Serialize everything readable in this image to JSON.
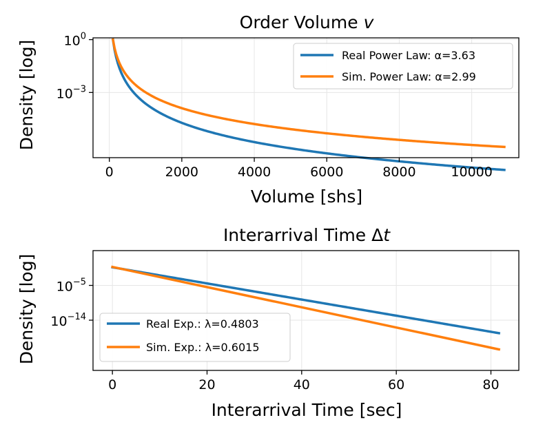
{
  "chart_data": [
    {
      "type": "line",
      "title_main": "Order Volume ",
      "title_var": "v",
      "xlabel": "Volume [shs]",
      "ylabel": "Density [log]",
      "yscale": "log",
      "grid": true,
      "legend_position": "upper right",
      "xlim": [
        -450,
        11300
      ],
      "ylim_log10": [
        -6.7,
        0.1
      ],
      "xticks": [
        0,
        2000,
        4000,
        6000,
        8000,
        10000
      ],
      "xtick_labels": [
        "0",
        "2000",
        "4000",
        "6000",
        "8000",
        "10000"
      ],
      "ytick_exponents": [
        0,
        -3
      ],
      "ytick_labels": [
        {
          "base": "10",
          "exp": "0"
        },
        {
          "base": "10",
          "exp": "−3"
        }
      ],
      "x_range": [
        100,
        10900
      ],
      "series": [
        {
          "name": "Real Power Law: α=3.63",
          "alpha": 3.63,
          "color": "#1f77b4",
          "points": [
            [
              100,
              0
            ],
            [
              300,
              -1.74
            ],
            [
              1000,
              -3.63
            ],
            [
              2000,
              -4.72
            ],
            [
              4000,
              -5.81
            ],
            [
              6000,
              -6.45
            ],
            [
              8000,
              -6.91
            ],
            [
              10900,
              -7.4
            ]
          ]
        },
        {
          "name": "Sim. Power Law: α=2.99",
          "alpha": 2.99,
          "color": "#ff7f0e",
          "points": [
            [
              100,
              0
            ],
            [
              300,
              -1.43
            ],
            [
              1000,
              -2.99
            ],
            [
              2000,
              -3.89
            ],
            [
              4000,
              -4.79
            ],
            [
              6000,
              -5.32
            ],
            [
              8000,
              -5.69
            ],
            [
              10900,
              -6.09
            ]
          ]
        }
      ]
    },
    {
      "type": "line",
      "title_main": "Interarrival Time Δ",
      "title_var": "t",
      "xlabel": "Interarrival Time [sec]",
      "ylabel": "Density [log]",
      "yscale": "log",
      "grid": true,
      "legend_position": "lower left",
      "xlim": [
        -4.1,
        85.9
      ],
      "ylim_log10": [
        -27,
        4
      ],
      "xticks": [
        0,
        20,
        40,
        60,
        80
      ],
      "xtick_labels": [
        "0",
        "20",
        "40",
        "60",
        "80"
      ],
      "ytick_exponents": [
        -5,
        -14
      ],
      "ytick_labels": [
        {
          "base": "10",
          "exp": "−5"
        },
        {
          "base": "10",
          "exp": "−14"
        }
      ],
      "x_range": [
        0,
        81.7
      ],
      "series": [
        {
          "name": "Real Exp.: λ=0.4803",
          "lambda": 0.4803,
          "color": "#1f77b4",
          "points": [
            [
              0,
              -0.32
            ],
            [
              20,
              -4.49
            ],
            [
              40,
              -8.66
            ],
            [
              60,
              -12.83
            ],
            [
              81.7,
              -17.36
            ]
          ]
        },
        {
          "name": "Sim. Exp.: λ=0.6015",
          "lambda": 0.6015,
          "color": "#ff7f0e",
          "points": [
            [
              0,
              -0.22
            ],
            [
              20,
              -5.45
            ],
            [
              40,
              -10.67
            ],
            [
              60,
              -15.9
            ],
            [
              81.7,
              -21.57
            ]
          ]
        }
      ]
    }
  ]
}
